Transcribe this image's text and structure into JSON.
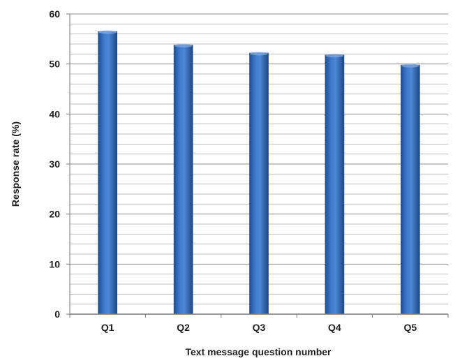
{
  "chart_data": {
    "type": "bar",
    "categories": [
      "Q1",
      "Q2",
      "Q3",
      "Q4",
      "Q5"
    ],
    "values": [
      56.5,
      53.8,
      52.2,
      51.8,
      49.8
    ],
    "title": "",
    "xlabel": "Text message question number",
    "ylabel": "Response rate  (%)",
    "ylim": [
      0,
      60
    ],
    "yticks": [
      0,
      10,
      20,
      30,
      40,
      50,
      60
    ],
    "minor_grid_step": 2,
    "grid": true,
    "legend": "none",
    "bar_color": "#3a74c0"
  }
}
